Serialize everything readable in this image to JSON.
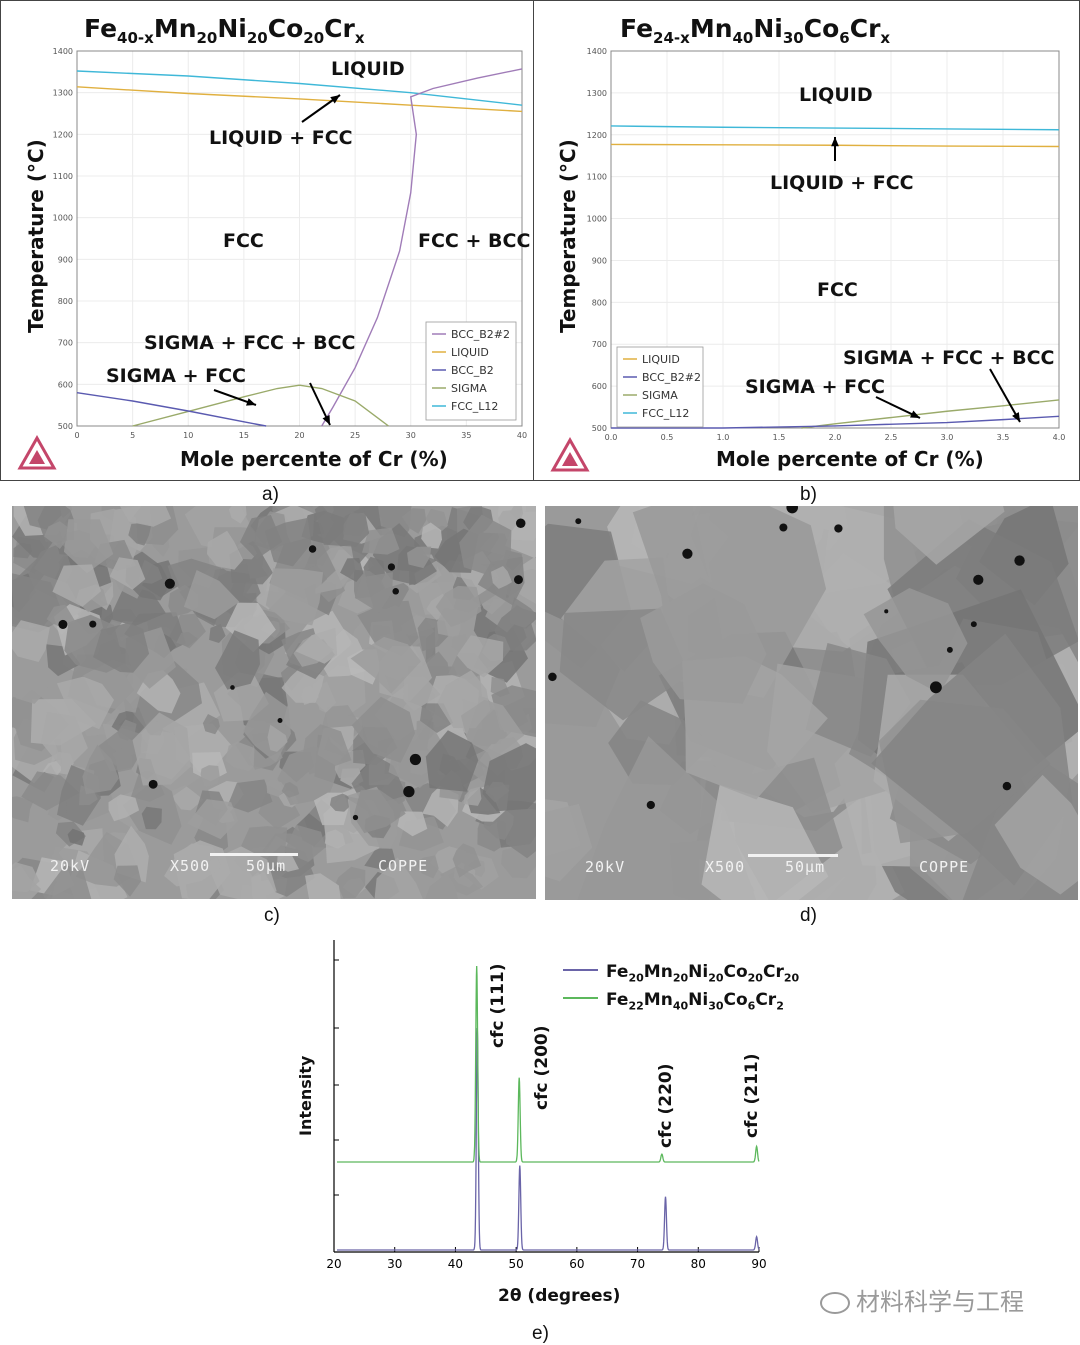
{
  "figure": {
    "label_a": "a)",
    "label_b": "b)",
    "label_c": "c)",
    "label_d": "d)",
    "label_e": "e)",
    "watermark": "材料科学与工程"
  },
  "sem": {
    "c": {
      "voltage": "20kV",
      "magnification": "X500",
      "scale": "50μm",
      "lab": "COPPE"
    },
    "d": {
      "voltage": "20kV",
      "magnification": "X500",
      "scale": "50μm",
      "lab": "COPPE"
    }
  },
  "chart_data": [
    {
      "id": "a",
      "type": "line",
      "title_base": "Fe",
      "title_parts": [
        [
          "Fe",
          "40-x"
        ],
        [
          "Mn",
          "20"
        ],
        [
          "Ni",
          "20"
        ],
        [
          "Co",
          "20"
        ],
        [
          "Cr",
          "x"
        ]
      ],
      "xlabel": "Mole percente of Cr (%)",
      "ylabel": "Temperature (°C)",
      "xlim": [
        0,
        40
      ],
      "ylim": [
        500,
        1400
      ],
      "xticks": [
        0,
        5,
        10,
        15,
        20,
        25,
        30,
        35,
        40
      ],
      "yticks": [
        500,
        600,
        700,
        800,
        900,
        1000,
        1100,
        1200,
        1300,
        1400
      ],
      "legend": [
        "BCC_B2#2",
        "LIQUID",
        "BCC_B2",
        "SIGMA",
        "FCC_L12"
      ],
      "legend_position": "bottom-right",
      "region_labels": [
        "LIQUID",
        "LIQUID + FCC",
        "FCC",
        "FCC + BCC",
        "SIGMA + FCC + BCC",
        "SIGMA + FCC"
      ],
      "series": [
        {
          "name": "FCC_L12",
          "color": "#3fb8d8",
          "x": [
            0,
            10,
            20,
            30,
            40
          ],
          "y": [
            1352,
            1340,
            1322,
            1300,
            1270
          ]
        },
        {
          "name": "LIQUID",
          "color": "#e0b040",
          "x": [
            0,
            10,
            20,
            30,
            40
          ],
          "y": [
            1314,
            1298,
            1285,
            1270,
            1255
          ]
        },
        {
          "name": "BCC_B2#2",
          "color": "#a07cb8",
          "x": [
            22,
            23,
            25,
            27,
            29,
            30,
            30.5,
            30,
            32,
            36,
            40
          ],
          "y": [
            500,
            545,
            640,
            760,
            920,
            1060,
            1200,
            1290,
            1310,
            1335,
            1357
          ]
        },
        {
          "name": "SIGMA",
          "color": "#9aaa6a",
          "x": [
            5,
            10,
            15,
            18,
            20,
            22,
            25,
            28
          ],
          "y": [
            500,
            535,
            570,
            590,
            598,
            590,
            560,
            500
          ]
        },
        {
          "name": "BCC_B2",
          "color": "#5a5ab0",
          "x": [
            0,
            5,
            10,
            15,
            17
          ],
          "y": [
            580,
            560,
            536,
            510,
            500
          ]
        }
      ],
      "colors": {
        "FCC_L12": "#3fb8d8",
        "LIQUID": "#e0b040",
        "BCC_B2#2": "#a07cb8",
        "SIGMA": "#9aaa6a",
        "BCC_B2": "#5a5ab0"
      }
    },
    {
      "id": "b",
      "type": "line",
      "title_parts": [
        [
          "Fe",
          "24-x"
        ],
        [
          "Mn",
          "40"
        ],
        [
          "Ni",
          "30"
        ],
        [
          "Co",
          "6"
        ],
        [
          "Cr",
          "x"
        ]
      ],
      "xlabel": "Mole percente of Cr (%)",
      "ylabel": "Temperature (°C)",
      "xlim": [
        0,
        4
      ],
      "ylim": [
        500,
        1400
      ],
      "xticks": [
        "0.0",
        "0.5",
        "1.0",
        "1.5",
        "2.0",
        "2.5",
        "3.0",
        "3.5",
        "4.0"
      ],
      "yticks": [
        500,
        600,
        700,
        800,
        900,
        1000,
        1100,
        1200,
        1300,
        1400
      ],
      "legend": [
        "LIQUID",
        "BCC_B2#2",
        "SIGMA",
        "FCC_L12"
      ],
      "legend_position": "bottom-left",
      "region_labels": [
        "LIQUID",
        "LIQUID + FCC",
        "FCC",
        "SIGMA + FCC + BCC",
        "SIGMA + FCC"
      ],
      "series": [
        {
          "name": "FCC_L12",
          "color": "#3fb8d8",
          "x": [
            0,
            1,
            2,
            3,
            4
          ],
          "y": [
            1221,
            1218,
            1216,
            1214,
            1212
          ]
        },
        {
          "name": "LIQUID",
          "color": "#e0b040",
          "x": [
            0,
            1,
            2,
            3,
            4
          ],
          "y": [
            1177,
            1176,
            1175,
            1173,
            1172
          ]
        },
        {
          "name": "SIGMA",
          "color": "#9aaa6a",
          "x": [
            1.7,
            2.0,
            2.5,
            3.0,
            3.5,
            4.0
          ],
          "y": [
            500,
            510,
            525,
            540,
            553,
            567
          ]
        },
        {
          "name": "BCC_B2#2",
          "color": "#5a5ab0",
          "x": [
            0,
            1,
            2,
            3,
            3.5,
            4.0
          ],
          "y": [
            500,
            500,
            505,
            513,
            520,
            528
          ]
        }
      ],
      "colors": {
        "FCC_L12": "#3fb8d8",
        "LIQUID": "#e0b040",
        "BCC_B2#2": "#5a5ab0",
        "SIGMA": "#9aaa6a"
      }
    },
    {
      "id": "e",
      "type": "line",
      "xlabel": "2θ (degrees)",
      "ylabel": "Intensity",
      "xlim": [
        20,
        90
      ],
      "xticks": [
        20,
        30,
        40,
        50,
        60,
        70,
        80,
        90
      ],
      "legend": [
        {
          "parts": [
            [
              "Fe",
              "20"
            ],
            [
              "Mn",
              "20"
            ],
            [
              "Ni",
              "20"
            ],
            [
              "Co",
              "20"
            ],
            [
              "Cr",
              "20"
            ]
          ],
          "color": "#6a64a8"
        },
        {
          "parts": [
            [
              "Fe",
              "22"
            ],
            [
              "Mn",
              "40"
            ],
            [
              "Ni",
              "30"
            ],
            [
              "Co",
              "6"
            ],
            [
              "Cr",
              "2"
            ]
          ],
          "color": "#5cb85c"
        }
      ],
      "peak_labels": [
        {
          "text": "cfc (111)",
          "x": 43.6
        },
        {
          "text": "cfc (200)",
          "x": 50.6
        },
        {
          "text": "cfc (220)",
          "x": 74.5
        },
        {
          "text": "cfc (211)",
          "x": 89.6
        }
      ],
      "series": [
        {
          "name": "Fe20Mn20Ni20Co20Cr20",
          "color": "#6a64a8",
          "peaks": [
            [
              43.6,
              1.0
            ],
            [
              50.6,
              0.38
            ],
            [
              74.6,
              0.24
            ],
            [
              89.6,
              0.06
            ]
          ]
        },
        {
          "name": "Fe22Mn40Ni30Co6Cr2",
          "color": "#5cb85c",
          "peaks": [
            [
              43.5,
              1.0
            ],
            [
              50.5,
              0.43
            ],
            [
              74.0,
              0.04
            ],
            [
              89.6,
              0.08
            ]
          ]
        }
      ]
    }
  ]
}
